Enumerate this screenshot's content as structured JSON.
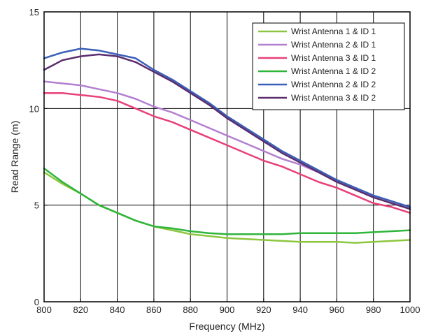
{
  "chart_data": {
    "type": "line",
    "xlabel": "Frequency (MHz)",
    "ylabel": "Read Range (m)",
    "xlim": [
      800,
      1000
    ],
    "ylim": [
      0,
      15
    ],
    "xticks": [
      800,
      820,
      840,
      860,
      880,
      900,
      920,
      940,
      960,
      980,
      1000
    ],
    "yticks": [
      0,
      5,
      10,
      15
    ],
    "grid": true,
    "legend_position": "top-right",
    "x": [
      800,
      810,
      820,
      830,
      840,
      850,
      860,
      870,
      880,
      890,
      900,
      910,
      920,
      930,
      940,
      950,
      960,
      970,
      980,
      990,
      1000
    ],
    "series": [
      {
        "name": "Wrist Antenna 1 & ID 1",
        "color": "#8dc63f",
        "values": [
          6.7,
          6.1,
          5.6,
          5.0,
          4.6,
          4.2,
          3.9,
          3.7,
          3.5,
          3.4,
          3.3,
          3.25,
          3.2,
          3.15,
          3.1,
          3.1,
          3.1,
          3.05,
          3.1,
          3.15,
          3.2
        ]
      },
      {
        "name": "Wrist Antenna 2 & ID 1",
        "color": "#b37fd1",
        "values": [
          11.4,
          11.3,
          11.2,
          11.0,
          10.8,
          10.5,
          10.1,
          9.8,
          9.4,
          9.0,
          8.6,
          8.2,
          7.8,
          7.4,
          7.1,
          6.7,
          6.3,
          5.9,
          5.5,
          5.2,
          4.9
        ]
      },
      {
        "name": "Wrist Antenna 3 & ID 1",
        "color": "#e8407a",
        "values": [
          10.8,
          10.8,
          10.7,
          10.6,
          10.4,
          10.0,
          9.6,
          9.3,
          8.9,
          8.5,
          8.1,
          7.7,
          7.3,
          7.0,
          6.6,
          6.2,
          5.9,
          5.5,
          5.1,
          4.9,
          4.6
        ]
      },
      {
        "name": "Wrist Antenna 1 & ID 2",
        "color": "#2fb53a",
        "values": [
          6.9,
          6.2,
          5.6,
          5.0,
          4.6,
          4.2,
          3.9,
          3.8,
          3.65,
          3.55,
          3.5,
          3.5,
          3.5,
          3.5,
          3.55,
          3.55,
          3.55,
          3.55,
          3.6,
          3.65,
          3.7
        ]
      },
      {
        "name": "Wrist Antenna 2 & ID 2",
        "color": "#3a5fb8",
        "values": [
          12.6,
          12.9,
          13.1,
          13.0,
          12.8,
          12.6,
          12.0,
          11.5,
          10.9,
          10.3,
          9.6,
          9.0,
          8.4,
          7.8,
          7.3,
          6.8,
          6.3,
          5.9,
          5.5,
          5.2,
          4.9
        ]
      },
      {
        "name": "Wrist Antenna 3 & ID 2",
        "color": "#5a2d6e",
        "values": [
          12.0,
          12.5,
          12.7,
          12.8,
          12.7,
          12.4,
          11.9,
          11.4,
          10.8,
          10.2,
          9.5,
          8.9,
          8.3,
          7.7,
          7.2,
          6.7,
          6.2,
          5.8,
          5.4,
          5.1,
          4.8
        ]
      }
    ]
  }
}
